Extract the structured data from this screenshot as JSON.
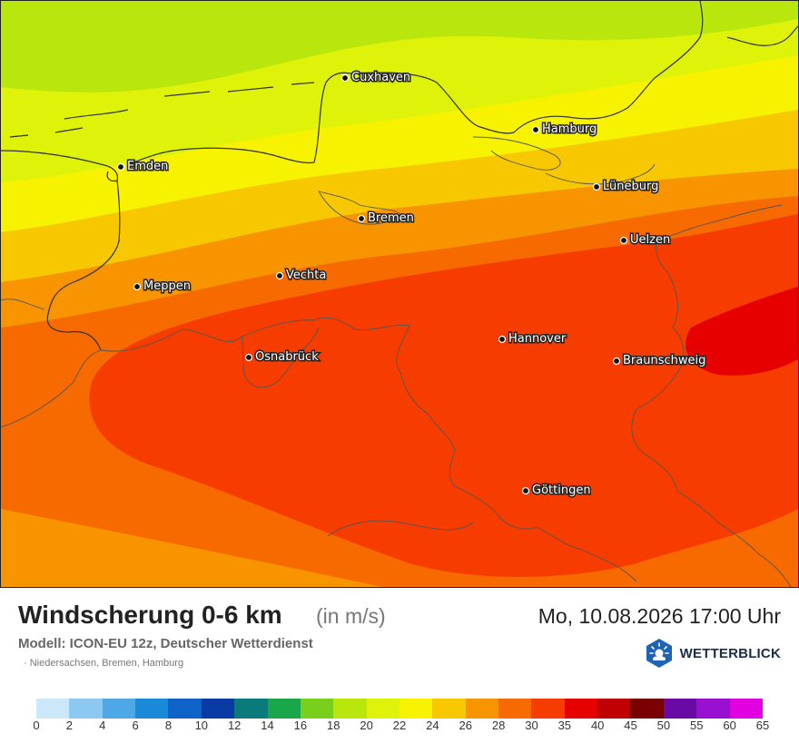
{
  "map": {
    "cities": [
      {
        "name": "Cuxhaven"
      },
      {
        "name": "Hamburg"
      },
      {
        "name": "Emden"
      },
      {
        "name": "Lüneburg"
      },
      {
        "name": "Bremen"
      },
      {
        "name": "Uelzen"
      },
      {
        "name": "Vechta"
      },
      {
        "name": "Meppen"
      },
      {
        "name": "Hannover"
      },
      {
        "name": "Osnabrück"
      },
      {
        "name": "Braunschweig"
      },
      {
        "name": "Göttingen"
      }
    ]
  },
  "footer": {
    "title": "Windscherung 0-6 km",
    "unit": "(in m/s)",
    "model": "Modell: ICON-EU 12z, Deutscher Wetterdienst",
    "region": "· Niedersachsen, Bremen, Hamburg",
    "datetime": "Mo, 10.08.2026 17:00 Uhr",
    "logo_text": "WETTERBLICK",
    "logo_icon": "sun-cloud-icon"
  },
  "legend": {
    "colors": [
      "#cce6fa",
      "#8cc8f2",
      "#4ea8e6",
      "#1a8ad8",
      "#0f62c8",
      "#0a3aa6",
      "#0b7a7a",
      "#1aa64a",
      "#79cf1c",
      "#b9e60c",
      "#dff20a",
      "#f7f200",
      "#f7c800",
      "#f79400",
      "#f76a00",
      "#f73c00",
      "#e60000",
      "#c00000",
      "#7a0000",
      "#6a0aa6",
      "#9a10d0",
      "#e000e0"
    ],
    "labels": [
      "0",
      "2",
      "4",
      "6",
      "8",
      "10",
      "12",
      "14",
      "16",
      "18",
      "20",
      "22",
      "24",
      "26",
      "28",
      "30",
      "35",
      "40",
      "45",
      "50",
      "55",
      "60",
      "65"
    ]
  }
}
